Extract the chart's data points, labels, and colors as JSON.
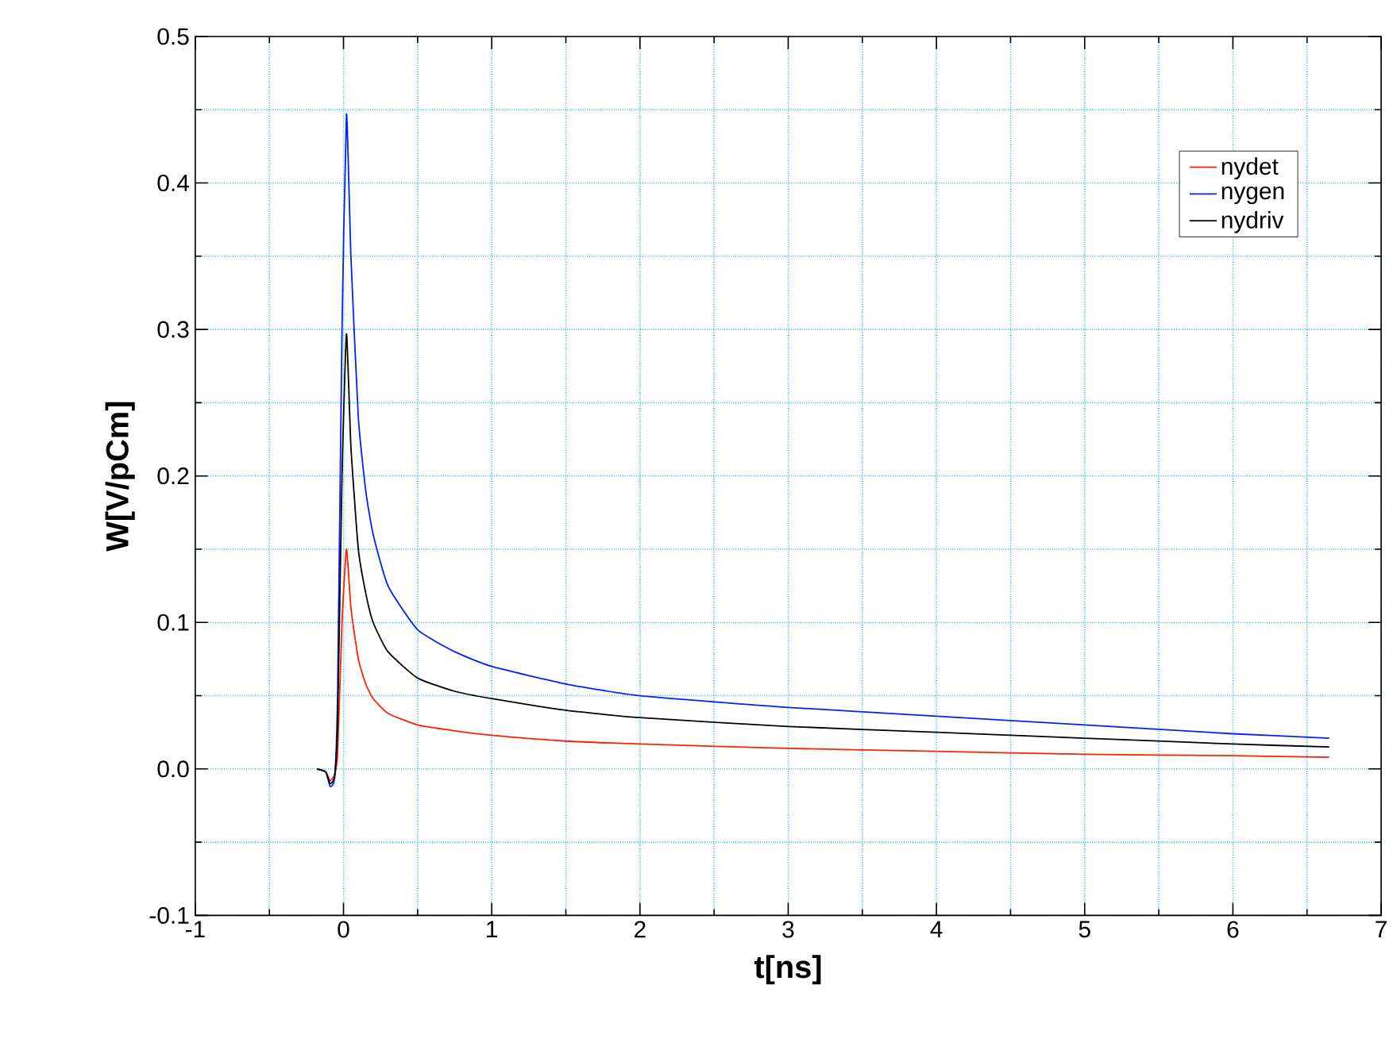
{
  "chart_data": {
    "type": "line",
    "xlabel": "t[ns]",
    "ylabel": "W[V/pCm]",
    "x": [
      -0.18,
      -0.12,
      -0.09,
      -0.06,
      -0.04,
      -0.01,
      0.02,
      0.05,
      0.1,
      0.15,
      0.2,
      0.3,
      0.5,
      0.75,
      1,
      1.5,
      2,
      3,
      4,
      5,
      6,
      6.65
    ],
    "series": [
      {
        "name": "nydet",
        "color": "#ff2000",
        "values": [
          0,
          -0.002,
          -0.008,
          -0.004,
          0.01,
          0.1,
          0.15,
          0.11,
          0.075,
          0.058,
          0.048,
          0.038,
          0.03,
          0.026,
          0.023,
          0.019,
          0.017,
          0.014,
          0.012,
          0.01,
          0.009,
          0.008
        ]
      },
      {
        "name": "nygen",
        "color": "#0020ff",
        "values": [
          0,
          -0.002,
          -0.012,
          -0.006,
          0.05,
          0.3,
          0.447,
          0.35,
          0.24,
          0.19,
          0.16,
          0.125,
          0.095,
          0.08,
          0.07,
          0.058,
          0.05,
          0.042,
          0.036,
          0.03,
          0.024,
          0.021
        ]
      },
      {
        "name": "nydriv",
        "color": "#000000",
        "values": [
          0,
          -0.002,
          -0.01,
          -0.005,
          0.03,
          0.2,
          0.297,
          0.22,
          0.15,
          0.12,
          0.1,
          0.08,
          0.062,
          0.053,
          0.048,
          0.04,
          0.035,
          0.029,
          0.025,
          0.021,
          0.017,
          0.015
        ]
      }
    ],
    "xlim": [
      -1,
      7
    ],
    "ylim": [
      -0.1,
      0.5
    ],
    "xticks": [
      -1,
      0,
      1,
      2,
      3,
      4,
      5,
      6,
      7
    ],
    "yticks": [
      {
        "value": -0.1,
        "label": "-0.1"
      },
      {
        "value": 0,
        "label": "0.0"
      },
      {
        "value": 0.1,
        "label": "0.1"
      },
      {
        "value": 0.2,
        "label": "0.2"
      },
      {
        "value": 0.3,
        "label": "0.3"
      },
      {
        "value": 0.4,
        "label": "0.4"
      },
      {
        "value": 0.5,
        "label": "0.5"
      }
    ],
    "grid": true,
    "legend": "top right",
    "marker": "none",
    "line_style": "solid"
  }
}
